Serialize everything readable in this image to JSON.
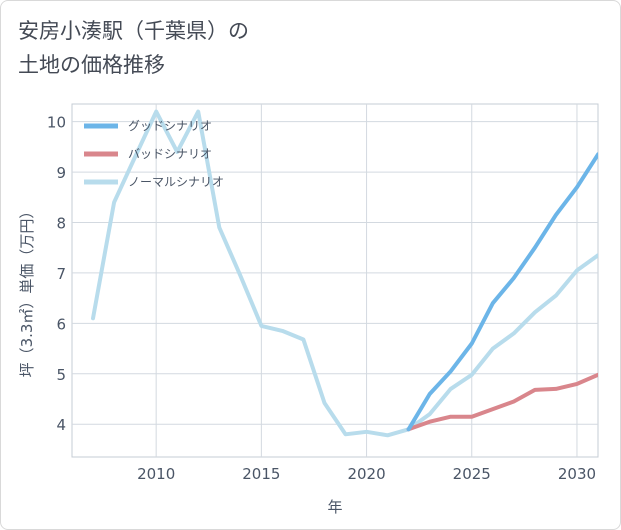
{
  "title": {
    "line1": "安房小湊駅（千葉県）の",
    "line2": "土地の価格推移"
  },
  "chart_data": {
    "type": "line",
    "title": "安房小湊駅（千葉県）の土地の価格推移",
    "xlabel": "年",
    "ylabel": "坪（3.3㎡）単価（万円）",
    "xlim": [
      2006,
      2031
    ],
    "ylim": [
      3.35,
      10.35
    ],
    "xticks": [
      2010,
      2015,
      2020,
      2025,
      2030
    ],
    "yticks": [
      4,
      5,
      6,
      7,
      8,
      9,
      10
    ],
    "grid": true,
    "legend_position": "top-left",
    "series": [
      {
        "name": "グッドシナリオ",
        "color": "#6cb5e8",
        "x": [
          2022,
          2023,
          2024,
          2025,
          2026,
          2027,
          2028,
          2029,
          2030,
          2031
        ],
        "y": [
          3.9,
          4.6,
          5.05,
          5.6,
          6.4,
          6.9,
          7.5,
          8.15,
          8.7,
          9.35
        ]
      },
      {
        "name": "バッドシナリオ",
        "color": "#d9868c",
        "x": [
          2022,
          2023,
          2024,
          2025,
          2026,
          2027,
          2028,
          2029,
          2030,
          2031
        ],
        "y": [
          3.9,
          4.05,
          4.15,
          4.15,
          4.3,
          4.45,
          4.68,
          4.7,
          4.8,
          4.98
        ]
      },
      {
        "name": "ノーマルシナリオ",
        "color": "#b8dcec",
        "x": [
          2007,
          2008,
          2009,
          2010,
          2011,
          2012,
          2013,
          2014,
          2015,
          2016,
          2017,
          2018,
          2019,
          2020,
          2021,
          2022,
          2023,
          2024,
          2025,
          2026,
          2027,
          2028,
          2029,
          2030,
          2031
        ],
        "y": [
          6.1,
          8.4,
          9.3,
          10.2,
          9.4,
          10.2,
          7.9,
          6.95,
          5.95,
          5.85,
          5.68,
          4.42,
          3.8,
          3.85,
          3.78,
          3.9,
          4.2,
          4.7,
          4.98,
          5.5,
          5.8,
          6.22,
          6.55,
          7.05,
          7.35
        ]
      }
    ]
  }
}
